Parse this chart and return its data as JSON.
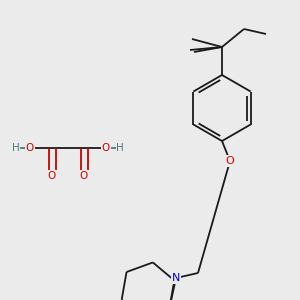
{
  "bg_color": "#ebebeb",
  "bond_color": "#1a1a1a",
  "o_color": "#cc0000",
  "n_color": "#0000cc",
  "h_color": "#4a7a7a",
  "lw": 1.3,
  "dg": 0.009,
  "fig_w": 3.0,
  "fig_h": 3.0,
  "dpi": 100,
  "xlim": [
    0,
    300
  ],
  "ylim": [
    0,
    300
  ]
}
